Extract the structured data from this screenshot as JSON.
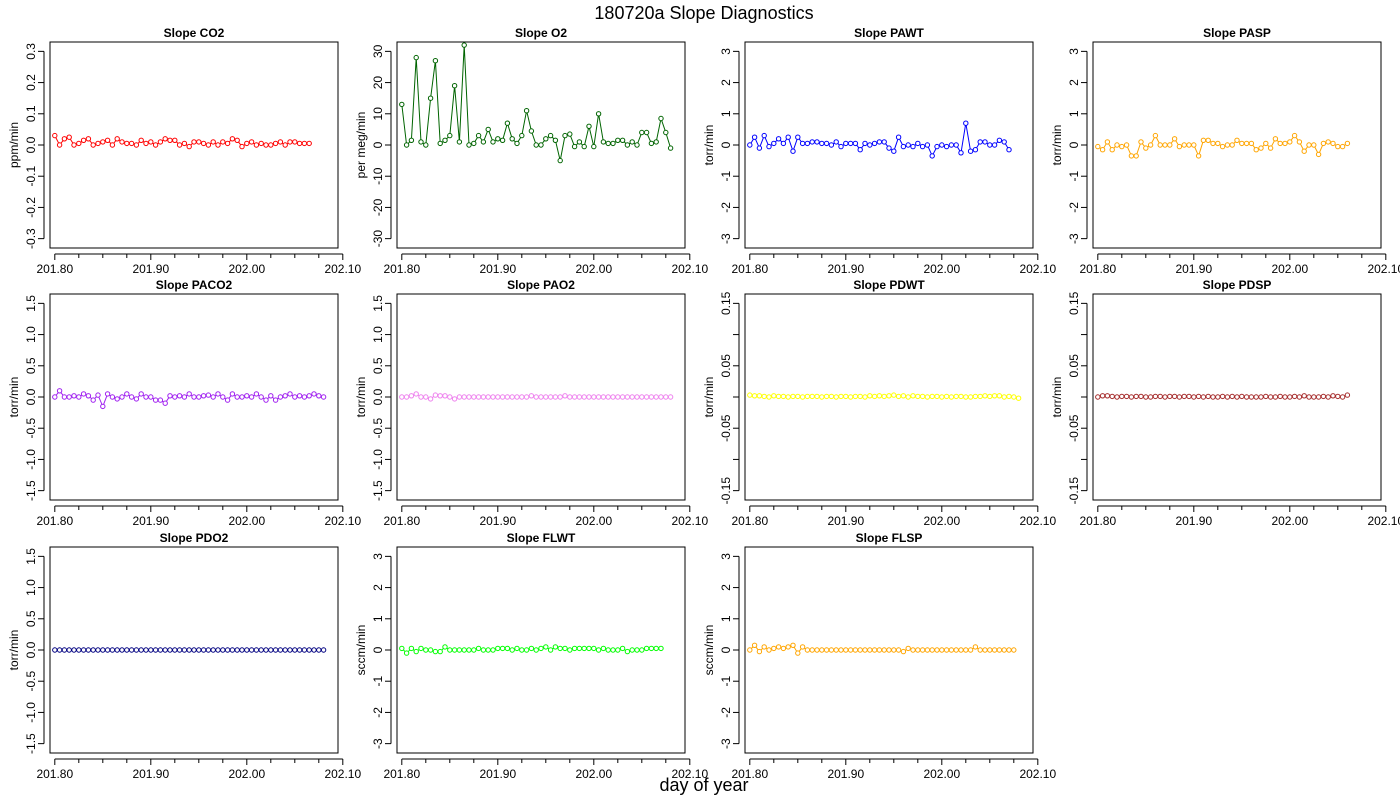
{
  "figure": {
    "title": "180720a   Slope Diagnostics",
    "xlabel": "day of year"
  },
  "chart_data": [
    {
      "type": "line",
      "title": "Slope CO2",
      "ylabel": "ppm/min",
      "color": "#ff0000",
      "xlim": [
        201.795,
        202.095
      ],
      "ylim": [
        -0.33,
        0.33
      ],
      "xticks": [
        201.8,
        201.9,
        202.0,
        202.1
      ],
      "xtick_labels": [
        "201.80",
        "201.90",
        "202.00",
        "202.10"
      ],
      "yticks": [
        -0.3,
        -0.2,
        -0.1,
        0.0,
        0.1,
        0.2,
        0.3
      ],
      "ytick_labels": [
        "-0.3",
        "-0.2",
        "-0.1",
        "0.0",
        "0.1",
        "0.2",
        "0.3"
      ],
      "x_start": 201.8,
      "x_step": 0.005,
      "values": [
        0.03,
        0.0,
        0.02,
        0.025,
        0.0,
        0.005,
        0.015,
        0.02,
        0.0,
        0.005,
        0.01,
        0.015,
        0.0,
        0.02,
        0.01,
        0.005,
        0.005,
        0.0,
        0.015,
        0.005,
        0.01,
        0.0,
        0.01,
        0.02,
        0.015,
        0.015,
        0.0,
        0.005,
        -0.005,
        0.01,
        0.01,
        0.005,
        0.0,
        0.01,
        0.0,
        0.01,
        0.005,
        0.02,
        0.015,
        -0.005,
        0.005,
        0.01,
        0.0,
        0.005,
        0.0,
        0.0,
        0.005,
        0.01,
        0.0,
        0.01,
        0.01,
        0.005,
        0.005,
        0.005
      ]
    },
    {
      "type": "line",
      "title": "Slope O2",
      "ylabel": "per meg/min",
      "color": "#006400",
      "xlim": [
        201.795,
        202.095
      ],
      "ylim": [
        -33,
        33
      ],
      "xticks": [
        201.8,
        201.9,
        202.0,
        202.1
      ],
      "xtick_labels": [
        "201.80",
        "201.90",
        "202.00",
        "202.10"
      ],
      "yticks": [
        -30,
        -20,
        -10,
        0,
        10,
        20,
        30
      ],
      "ytick_labels": [
        "-30",
        "-20",
        "-10",
        "0",
        "10",
        "20",
        "30"
      ],
      "x_start": 201.8,
      "x_step": 0.005,
      "values": [
        13,
        0,
        1.5,
        28,
        1,
        0,
        15,
        27,
        0.5,
        1.5,
        3,
        19,
        1,
        32,
        0,
        0.5,
        3,
        1,
        5,
        1,
        2,
        1.5,
        7,
        2,
        0.5,
        3,
        11,
        4.5,
        0,
        0,
        2,
        3,
        1.5,
        -5,
        3,
        3.5,
        -0.5,
        1,
        -0.5,
        6,
        -0.5,
        10,
        1,
        0.5,
        0.5,
        1.5,
        1.5,
        0,
        1,
        0,
        4,
        4,
        0.5,
        1,
        8.5,
        4,
        -1
      ]
    },
    {
      "type": "line",
      "title": "Slope PAWT",
      "ylabel": "torr/min",
      "color": "#0000ff",
      "xlim": [
        201.795,
        202.095
      ],
      "ylim": [
        -3.3,
        3.3
      ],
      "xticks": [
        201.8,
        201.9,
        202.0,
        202.1
      ],
      "xtick_labels": [
        "201.80",
        "201.90",
        "202.00",
        "202.10"
      ],
      "yticks": [
        -3,
        -2,
        -1,
        0,
        1,
        2,
        3
      ],
      "ytick_labels": [
        "-3",
        "-2",
        "-1",
        "0",
        "1",
        "2",
        "3"
      ],
      "x_start": 201.8,
      "x_step": 0.005,
      "values": [
        0.0,
        0.25,
        -0.1,
        0.3,
        -0.05,
        0.05,
        0.2,
        0.05,
        0.25,
        -0.2,
        0.25,
        0.05,
        0.05,
        0.1,
        0.1,
        0.05,
        0.05,
        0.0,
        0.1,
        -0.05,
        0.05,
        0.05,
        0.05,
        -0.15,
        0.05,
        0.0,
        0.05,
        0.1,
        0.1,
        -0.1,
        -0.2,
        0.25,
        -0.05,
        0.0,
        -0.05,
        0.05,
        -0.05,
        0.0,
        -0.35,
        -0.05,
        0.0,
        -0.05,
        0.0,
        0.0,
        -0.25,
        0.7,
        -0.2,
        -0.15,
        0.1,
        0.1,
        0.0,
        0.0,
        0.15,
        0.1,
        -0.15
      ]
    },
    {
      "type": "line",
      "title": "Slope PASP",
      "ylabel": "torr/min",
      "color": "#ffa500",
      "xlim": [
        201.795,
        202.095
      ],
      "ylim": [
        -3.3,
        3.3
      ],
      "xticks": [
        201.8,
        201.9,
        202.0,
        202.1
      ],
      "xtick_labels": [
        "201.80",
        "201.90",
        "202.00",
        "202.10"
      ],
      "yticks": [
        -3,
        -2,
        -1,
        0,
        1,
        2,
        3
      ],
      "ytick_labels": [
        "-3",
        "-2",
        "-1",
        "0",
        "1",
        "2",
        "3"
      ],
      "x_start": 201.8,
      "x_step": 0.005,
      "values": [
        -0.05,
        -0.15,
        0.1,
        -0.15,
        0.0,
        -0.05,
        0.0,
        -0.35,
        -0.35,
        0.1,
        -0.1,
        0.0,
        0.3,
        0.0,
        0.0,
        0.0,
        0.2,
        -0.05,
        0.0,
        0.0,
        0.0,
        -0.35,
        0.15,
        0.15,
        0.05,
        0.05,
        -0.05,
        0.0,
        0.0,
        0.15,
        0.05,
        0.05,
        0.05,
        -0.15,
        -0.1,
        0.05,
        -0.1,
        0.2,
        0.05,
        0.05,
        0.1,
        0.3,
        0.1,
        -0.2,
        0.0,
        0.0,
        -0.3,
        0.05,
        0.1,
        0.05,
        -0.05,
        -0.05,
        0.05
      ]
    },
    {
      "type": "line",
      "title": "Slope PACO2",
      "ylabel": "torr/min",
      "color": "#a020f0",
      "xlim": [
        201.795,
        202.095
      ],
      "ylim": [
        -1.65,
        1.65
      ],
      "xticks": [
        201.8,
        201.9,
        202.0,
        202.1
      ],
      "xtick_labels": [
        "201.80",
        "201.90",
        "202.00",
        "202.10"
      ],
      "yticks": [
        -1.5,
        -1.0,
        -0.5,
        0.0,
        0.5,
        1.0,
        1.5
      ],
      "ytick_labels": [
        "-1.5",
        "-1.0",
        "-0.5",
        "0.0",
        "0.5",
        "1.0",
        "1.5"
      ],
      "x_start": 201.8,
      "x_step": 0.005,
      "values": [
        0.0,
        0.1,
        0.0,
        0.0,
        0.02,
        0.0,
        0.05,
        0.02,
        -0.05,
        0.03,
        -0.15,
        0.05,
        0.0,
        -0.03,
        0.0,
        0.05,
        0.0,
        -0.03,
        0.05,
        0.0,
        0.0,
        -0.05,
        -0.05,
        -0.1,
        0.02,
        0.0,
        0.02,
        0.0,
        0.05,
        0.0,
        0.0,
        0.02,
        0.03,
        0.0,
        0.05,
        0.0,
        -0.05,
        0.05,
        0.0,
        0.0,
        0.02,
        0.0,
        0.05,
        0.0,
        -0.05,
        0.02,
        -0.05,
        0.0,
        0.02,
        0.05,
        0.0,
        0.02,
        0.0,
        0.02,
        0.05,
        0.02,
        0.0
      ]
    },
    {
      "type": "line",
      "title": "Slope PAO2",
      "ylabel": "torr/min",
      "color": "#ee82ee",
      "xlim": [
        201.795,
        202.095
      ],
      "ylim": [
        -1.65,
        1.65
      ],
      "xticks": [
        201.8,
        201.9,
        202.0,
        202.1
      ],
      "xtick_labels": [
        "201.80",
        "201.90",
        "202.00",
        "202.10"
      ],
      "yticks": [
        -1.5,
        -1.0,
        -0.5,
        0.0,
        0.5,
        1.0,
        1.5
      ],
      "ytick_labels": [
        "-1.5",
        "-1.0",
        "-0.5",
        "0.0",
        "0.5",
        "1.0",
        "1.5"
      ],
      "x_start": 201.8,
      "x_step": 0.005,
      "values": [
        0.0,
        0.0,
        0.02,
        0.05,
        0.0,
        0.0,
        -0.03,
        0.03,
        0.02,
        0.02,
        0.0,
        -0.03,
        0.0,
        0.0,
        0.0,
        0.0,
        0.0,
        0.0,
        0.0,
        0.0,
        0.0,
        0.0,
        0.0,
        0.0,
        0.0,
        0.0,
        0.0,
        0.02,
        0.0,
        0.0,
        0.0,
        0.0,
        0.0,
        0.0,
        0.02,
        0.0,
        0.0,
        0.0,
        0.0,
        0.0,
        0.0,
        0.0,
        0.0,
        0.0,
        0.0,
        0.0,
        0.0,
        0.0,
        0.0,
        0.0,
        0.0,
        0.0,
        0.0,
        0.0,
        0.0,
        0.0,
        0.0
      ]
    },
    {
      "type": "line",
      "title": "Slope PDWT",
      "ylabel": "torr/min",
      "color": "#ffff00",
      "xlim": [
        201.795,
        202.095
      ],
      "ylim": [
        -0.165,
        0.165
      ],
      "xticks": [
        201.8,
        201.9,
        202.0,
        202.1
      ],
      "xtick_labels": [
        "201.80",
        "201.90",
        "202.00",
        "202.10"
      ],
      "yticks": [
        -0.15,
        -0.1,
        -0.05,
        0.0,
        0.05,
        0.1,
        0.15
      ],
      "ytick_labels": [
        "-0.15",
        "",
        "-0.05",
        "",
        "0.05",
        "",
        "0.15"
      ],
      "x_start": 201.8,
      "x_step": 0.005,
      "values": [
        0.003,
        0.002,
        0.002,
        0.001,
        0.0,
        0.002,
        0.001,
        0.001,
        0.0,
        0.001,
        0.001,
        0.0,
        0.001,
        0.001,
        0.001,
        0.0,
        0.001,
        0.001,
        0.0,
        0.001,
        0.001,
        0.0,
        0.001,
        0.001,
        0.0,
        0.002,
        0.001,
        0.002,
        0.001,
        0.002,
        0.003,
        0.001,
        0.002,
        0.0,
        0.002,
        0.001,
        0.001,
        0.0,
        0.001,
        0.001,
        0.0,
        0.001,
        0.0,
        0.001,
        0.001,
        0.0,
        0.0,
        0.001,
        0.001,
        0.002,
        0.001,
        0.002,
        0.002,
        0.0,
        0.001,
        0.0,
        -0.002
      ]
    },
    {
      "type": "line",
      "title": "Slope PDSP",
      "ylabel": "torr/min",
      "color": "#a52a2a",
      "xlim": [
        201.795,
        202.095
      ],
      "ylim": [
        -0.165,
        0.165
      ],
      "xticks": [
        201.8,
        201.9,
        202.0,
        202.1
      ],
      "xtick_labels": [
        "201.80",
        "201.90",
        "202.00",
        "202.10"
      ],
      "yticks": [
        -0.15,
        -0.1,
        -0.05,
        0.0,
        0.05,
        0.1,
        0.15
      ],
      "ytick_labels": [
        "-0.15",
        "",
        "-0.05",
        "",
        "0.05",
        "",
        "0.15"
      ],
      "x_start": 201.8,
      "x_step": 0.005,
      "values": [
        0.0,
        0.002,
        0.002,
        0.001,
        0.0,
        0.001,
        0.001,
        0.0,
        0.001,
        0.001,
        0.0,
        0.0,
        0.001,
        0.001,
        0.0,
        0.001,
        0.001,
        0.0,
        0.001,
        0.001,
        0.0,
        0.001,
        0.0,
        0.001,
        0.0,
        0.0,
        0.001,
        0.0,
        0.001,
        0.0,
        0.001,
        0.0,
        0.0,
        0.0,
        0.0,
        0.001,
        0.0,
        0.0,
        0.001,
        0.0,
        0.0,
        0.001,
        0.0,
        0.002,
        0.0,
        0.0,
        0.0,
        0.001,
        0.0,
        0.002,
        0.001,
        0.0,
        0.003
      ]
    },
    {
      "type": "line",
      "title": "Slope PDO2",
      "ylabel": "torr/min",
      "color": "#000080",
      "xlim": [
        201.795,
        202.095
      ],
      "ylim": [
        -1.65,
        1.65
      ],
      "xticks": [
        201.8,
        201.9,
        202.0,
        202.1
      ],
      "xtick_labels": [
        "201.80",
        "201.90",
        "202.00",
        "202.10"
      ],
      "yticks": [
        -1.5,
        -1.0,
        -0.5,
        0.0,
        0.5,
        1.0,
        1.5
      ],
      "ytick_labels": [
        "-1.5",
        "-1.0",
        "-0.5",
        "0.0",
        "0.5",
        "1.0",
        "1.5"
      ],
      "x_start": 201.8,
      "x_step": 0.005,
      "values": [
        0.0,
        0.0,
        0.0,
        0.0,
        0.0,
        0.0,
        0.0,
        0.0,
        0.0,
        0.0,
        0.0,
        0.0,
        0.0,
        0.0,
        0.0,
        0.0,
        0.0,
        0.0,
        0.0,
        0.0,
        0.0,
        0.0,
        0.0,
        0.0,
        0.0,
        0.0,
        0.0,
        0.0,
        0.0,
        0.0,
        0.0,
        0.0,
        0.0,
        0.0,
        0.0,
        0.0,
        0.0,
        0.0,
        0.0,
        0.0,
        0.0,
        0.0,
        0.0,
        0.0,
        0.0,
        0.0,
        0.0,
        0.0,
        0.0,
        0.0,
        0.0,
        0.0,
        0.0,
        0.0,
        0.0,
        0.0,
        0.0
      ]
    },
    {
      "type": "line",
      "title": "Slope FLWT",
      "ylabel": "sccm/min",
      "color": "#00ff00",
      "xlim": [
        201.795,
        202.095
      ],
      "ylim": [
        -3.3,
        3.3
      ],
      "xticks": [
        201.8,
        201.9,
        202.0,
        202.1
      ],
      "xtick_labels": [
        "201.80",
        "201.90",
        "202.00",
        "202.10"
      ],
      "yticks": [
        -3,
        -2,
        -1,
        0,
        1,
        2,
        3
      ],
      "ytick_labels": [
        "-3",
        "-2",
        "-1",
        "0",
        "1",
        "2",
        "3"
      ],
      "x_start": 201.8,
      "x_step": 0.005,
      "values": [
        0.05,
        -0.1,
        0.05,
        -0.05,
        0.05,
        0.0,
        0.0,
        -0.05,
        -0.05,
        0.1,
        0.0,
        0.0,
        0.0,
        0.0,
        0.0,
        0.0,
        0.05,
        0.0,
        0.0,
        0.0,
        0.05,
        0.05,
        0.05,
        0.0,
        0.05,
        0.0,
        0.0,
        0.05,
        0.0,
        0.05,
        0.1,
        0.0,
        0.1,
        0.05,
        0.05,
        0.0,
        0.05,
        0.05,
        0.05,
        0.05,
        0.05,
        0.0,
        0.05,
        0.0,
        0.0,
        0.0,
        0.05,
        -0.05,
        0.0,
        0.0,
        0.0,
        0.05,
        0.05,
        0.05,
        0.05
      ]
    },
    {
      "type": "line",
      "title": "Slope FLSP",
      "ylabel": "sccm/min",
      "color": "#ffa500",
      "xlim": [
        201.795,
        202.095
      ],
      "ylim": [
        -3.3,
        3.3
      ],
      "xticks": [
        201.8,
        201.9,
        202.0,
        202.1
      ],
      "xtick_labels": [
        "201.80",
        "201.90",
        "202.00",
        "202.10"
      ],
      "yticks": [
        -3,
        -2,
        -1,
        0,
        1,
        2,
        3
      ],
      "ytick_labels": [
        "-3",
        "-2",
        "-1",
        "0",
        "1",
        "2",
        "3"
      ],
      "x_start": 201.8,
      "x_step": 0.005,
      "values": [
        0.0,
        0.15,
        -0.05,
        0.1,
        0.0,
        0.05,
        0.1,
        0.05,
        0.1,
        0.15,
        -0.1,
        0.1,
        0.0,
        0.0,
        0.0,
        0.0,
        0.0,
        0.0,
        0.0,
        0.0,
        0.0,
        0.0,
        0.0,
        0.0,
        0.0,
        0.0,
        0.0,
        0.0,
        0.0,
        0.0,
        0.0,
        0.0,
        -0.05,
        0.05,
        0.0,
        0.0,
        0.0,
        0.0,
        0.0,
        0.0,
        0.0,
        0.0,
        0.0,
        0.0,
        0.0,
        0.0,
        0.0,
        0.1,
        0.0,
        0.0,
        0.0,
        0.0,
        0.0,
        0.0,
        0.0,
        0.0
      ]
    }
  ]
}
